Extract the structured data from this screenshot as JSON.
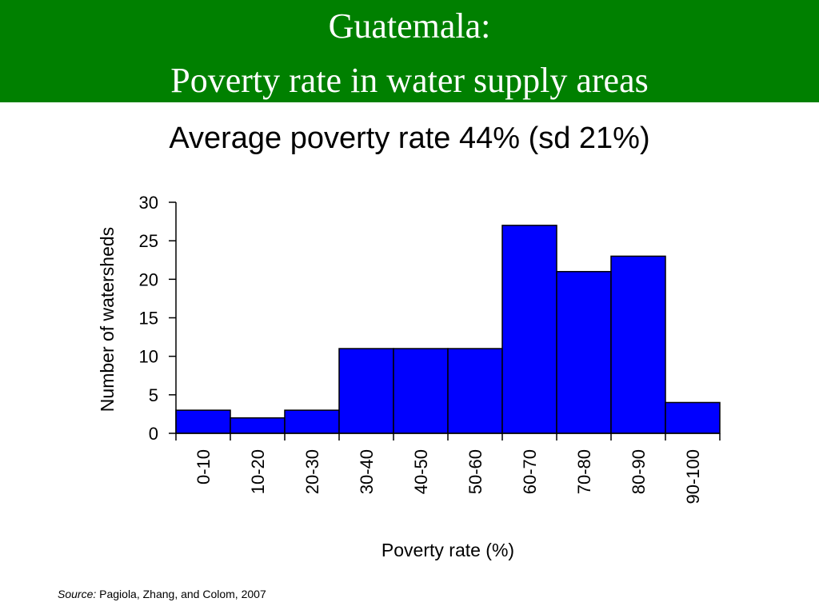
{
  "header": {
    "title_line1": "Guatemala:",
    "title_line2": "Poverty rate in water supply areas",
    "background_color": "#008000"
  },
  "chart_data": {
    "type": "bar",
    "title": "Average poverty rate 44% (sd 21%)",
    "categories": [
      "0-10",
      "10-20",
      "20-30",
      "30-40",
      "40-50",
      "50-60",
      "60-70",
      "70-80",
      "80-90",
      "90-100"
    ],
    "values": [
      3,
      2,
      3,
      11,
      11,
      11,
      27,
      21,
      23,
      4
    ],
    "xlabel": "Poverty rate (%)",
    "ylabel": "Number of watersheds",
    "ylim": [
      0,
      30
    ],
    "yticks": [
      "0",
      "5",
      "10",
      "15",
      "20",
      "25",
      "30"
    ],
    "grid": false,
    "legend": "none",
    "bar_color": "#0000ff"
  },
  "source": {
    "label": "Source:",
    "text": "Pagiola, Zhang, and Colom, 2007"
  }
}
